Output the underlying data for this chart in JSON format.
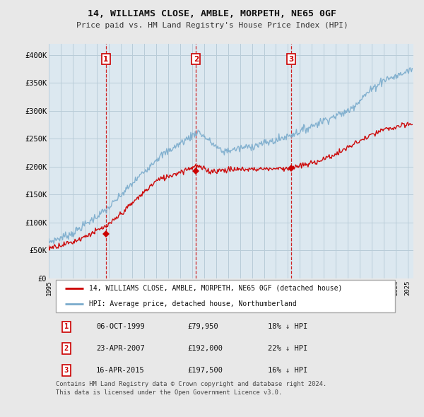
{
  "title": "14, WILLIAMS CLOSE, AMBLE, MORPETH, NE65 0GF",
  "subtitle": "Price paid vs. HM Land Registry's House Price Index (HPI)",
  "ylabel_ticks": [
    "£0",
    "£50K",
    "£100K",
    "£150K",
    "£200K",
    "£250K",
    "£300K",
    "£350K",
    "£400K"
  ],
  "ytick_values": [
    0,
    50000,
    100000,
    150000,
    200000,
    250000,
    300000,
    350000,
    400000
  ],
  "ylim": [
    0,
    420000
  ],
  "xlim_start": 1995.0,
  "xlim_end": 2025.5,
  "background_color": "#e8e8e8",
  "plot_background": "#dce8f0",
  "grid_color": "#b8ccd8",
  "red_line_color": "#cc0000",
  "blue_line_color": "#7aabcc",
  "dashed_color": "#cc0000",
  "legend_label_red": "14, WILLIAMS CLOSE, AMBLE, MORPETH, NE65 0GF (detached house)",
  "legend_label_blue": "HPI: Average price, detached house, Northumberland",
  "sale_dates": [
    1999.77,
    2007.31,
    2015.29
  ],
  "sale_prices": [
    79950,
    192000,
    197500
  ],
  "sale_labels": [
    "1",
    "2",
    "3"
  ],
  "table_rows": [
    [
      "1",
      "06-OCT-1999",
      "£79,950",
      "18% ↓ HPI"
    ],
    [
      "2",
      "23-APR-2007",
      "£192,000",
      "22% ↓ HPI"
    ],
    [
      "3",
      "16-APR-2015",
      "£197,500",
      "16% ↓ HPI"
    ]
  ],
  "footnote": "Contains HM Land Registry data © Crown copyright and database right 2024.\nThis data is licensed under the Open Government Licence v3.0.",
  "xtick_years": [
    1995,
    1996,
    1997,
    1998,
    1999,
    2000,
    2001,
    2002,
    2003,
    2004,
    2005,
    2006,
    2007,
    2008,
    2009,
    2010,
    2011,
    2012,
    2013,
    2014,
    2015,
    2016,
    2017,
    2018,
    2019,
    2020,
    2021,
    2022,
    2023,
    2024,
    2025
  ]
}
